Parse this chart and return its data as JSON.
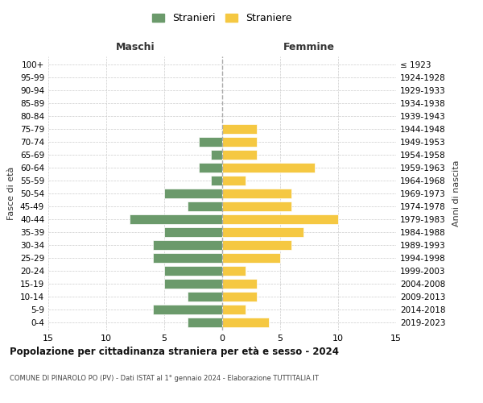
{
  "age_groups": [
    "0-4",
    "5-9",
    "10-14",
    "15-19",
    "20-24",
    "25-29",
    "30-34",
    "35-39",
    "40-44",
    "45-49",
    "50-54",
    "55-59",
    "60-64",
    "65-69",
    "70-74",
    "75-79",
    "80-84",
    "85-89",
    "90-94",
    "95-99",
    "100+"
  ],
  "birth_years": [
    "2019-2023",
    "2014-2018",
    "2009-2013",
    "2004-2008",
    "1999-2003",
    "1994-1998",
    "1989-1993",
    "1984-1988",
    "1979-1983",
    "1974-1978",
    "1969-1973",
    "1964-1968",
    "1959-1963",
    "1954-1958",
    "1949-1953",
    "1944-1948",
    "1939-1943",
    "1934-1938",
    "1929-1933",
    "1924-1928",
    "≤ 1923"
  ],
  "males": [
    3,
    6,
    3,
    5,
    5,
    6,
    6,
    5,
    8,
    3,
    5,
    1,
    2,
    1,
    2,
    0,
    0,
    0,
    0,
    0,
    0
  ],
  "females": [
    4,
    2,
    3,
    3,
    2,
    5,
    6,
    7,
    10,
    6,
    6,
    2,
    8,
    3,
    3,
    3,
    0,
    0,
    0,
    0,
    0
  ],
  "male_color": "#6b9a6b",
  "female_color": "#f5c842",
  "background_color": "#ffffff",
  "grid_color": "#cccccc",
  "title": "Popolazione per cittadinanza straniera per età e sesso - 2024",
  "subtitle": "COMUNE DI PINAROLO PO (PV) - Dati ISTAT al 1° gennaio 2024 - Elaborazione TUTTITALIA.IT",
  "xlabel_left": "Maschi",
  "xlabel_right": "Femmine",
  "ylabel_left": "Fasce di età",
  "ylabel_right": "Anni di nascita",
  "legend_male": "Stranieri",
  "legend_female": "Straniere",
  "xlim": 15
}
